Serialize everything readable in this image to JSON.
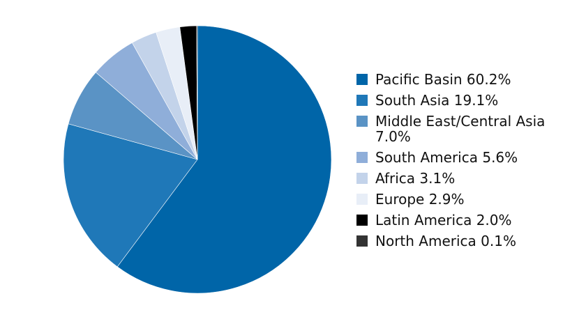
{
  "chart_data": {
    "type": "pie",
    "categories": [
      "Pacific Basin",
      "South Asia",
      "Middle East/Central Asia",
      "South America",
      "Africa",
      "Europe",
      "Latin America",
      "North America"
    ],
    "values": [
      60.2,
      19.1,
      7.0,
      5.6,
      3.1,
      2.9,
      2.0,
      0.1
    ],
    "colors": [
      "#0065a8",
      "#1f78b8",
      "#5a93c5",
      "#8faed9",
      "#c3d3ea",
      "#e8eef7",
      "#000000",
      "#333333"
    ],
    "labels": [
      "Pacific Basin 60.2%",
      "South Asia 19.1%",
      "Middle East/Central Asia 7.0%",
      "South America 5.6%",
      "Africa 3.1%",
      "Europe 2.9%",
      "Latin America 2.0%",
      "North America 0.1%"
    ],
    "legend_position": "right",
    "start_angle": "top, clockwise"
  }
}
